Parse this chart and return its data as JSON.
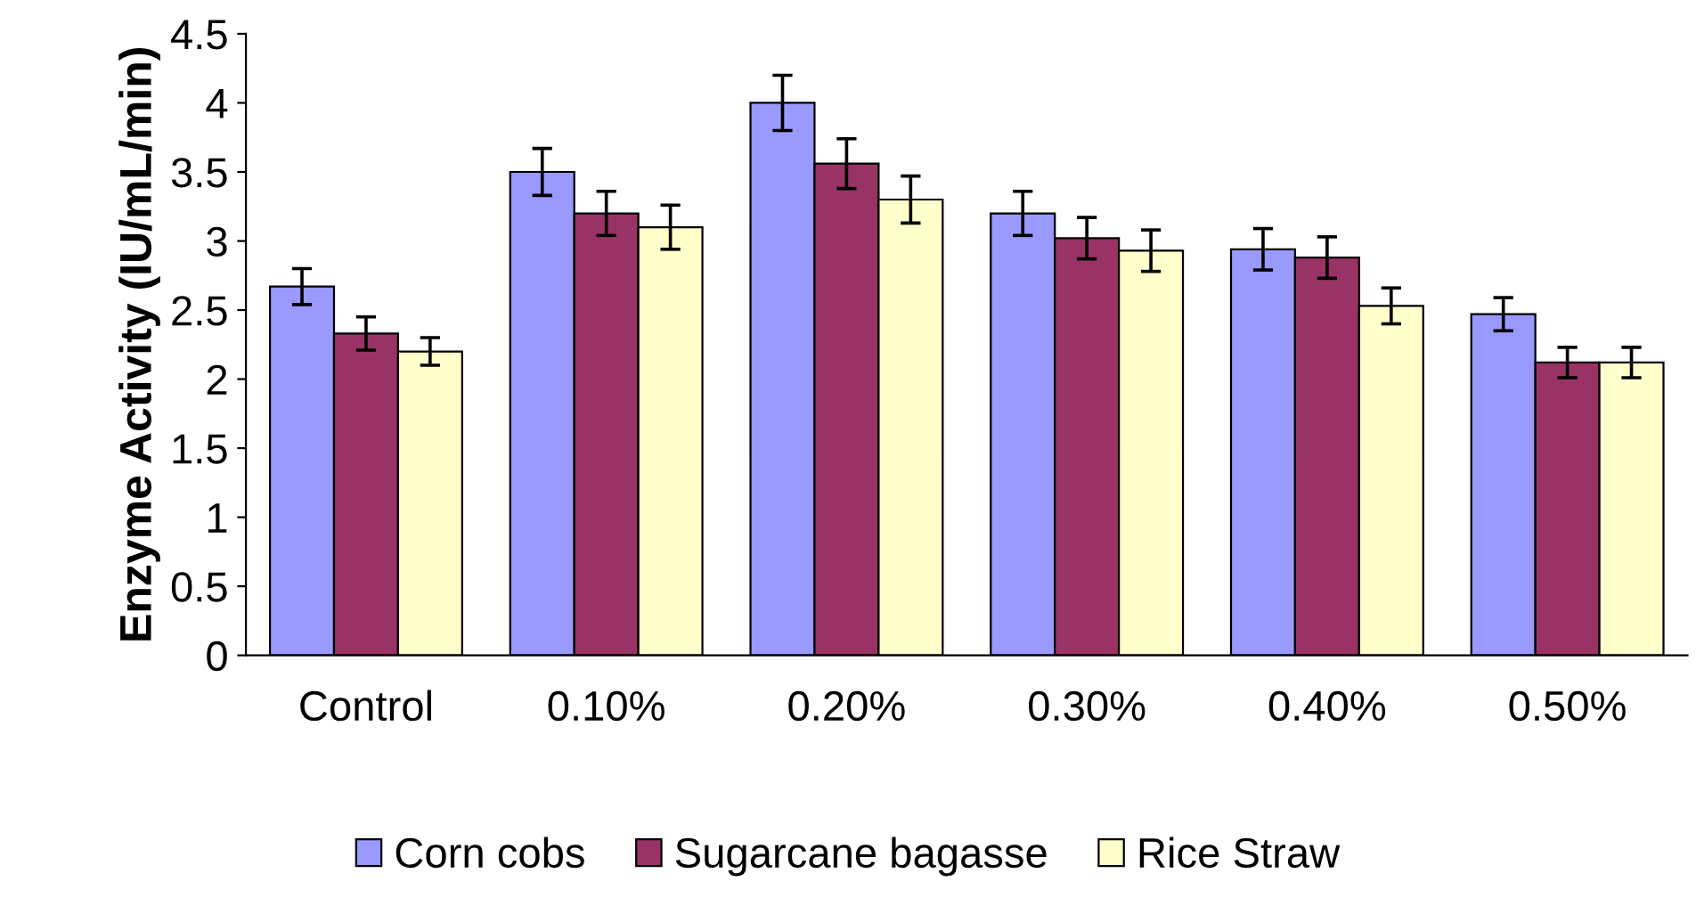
{
  "chart_data": {
    "type": "bar",
    "ylabel": "Enzyme Activity (IU/mL/min)",
    "categories": [
      "Control",
      "0.10%",
      "0.20%",
      "0.30%",
      "0.40%",
      "0.50%"
    ],
    "series": [
      {
        "name": "Corn cobs",
        "color": "#9999ff",
        "values": [
          2.67,
          3.5,
          4.0,
          3.2,
          2.94,
          2.47
        ],
        "errors": [
          0.13,
          0.17,
          0.2,
          0.16,
          0.15,
          0.12
        ]
      },
      {
        "name": "Sugarcane bagasse",
        "color": "#993366",
        "values": [
          2.33,
          3.2,
          3.56,
          3.02,
          2.88,
          2.12
        ],
        "errors": [
          0.12,
          0.16,
          0.18,
          0.15,
          0.15,
          0.11
        ]
      },
      {
        "name": "Rice Straw",
        "color": "#ffffcc",
        "values": [
          2.2,
          3.1,
          3.3,
          2.93,
          2.53,
          2.12
        ],
        "errors": [
          0.1,
          0.16,
          0.17,
          0.15,
          0.13,
          0.11
        ]
      }
    ],
    "ylim": [
      0,
      4.5
    ],
    "yticks": [
      0,
      0.5,
      1,
      1.5,
      2,
      2.5,
      3,
      3.5,
      4,
      4.5
    ],
    "grid": false,
    "legend": "bottom"
  }
}
